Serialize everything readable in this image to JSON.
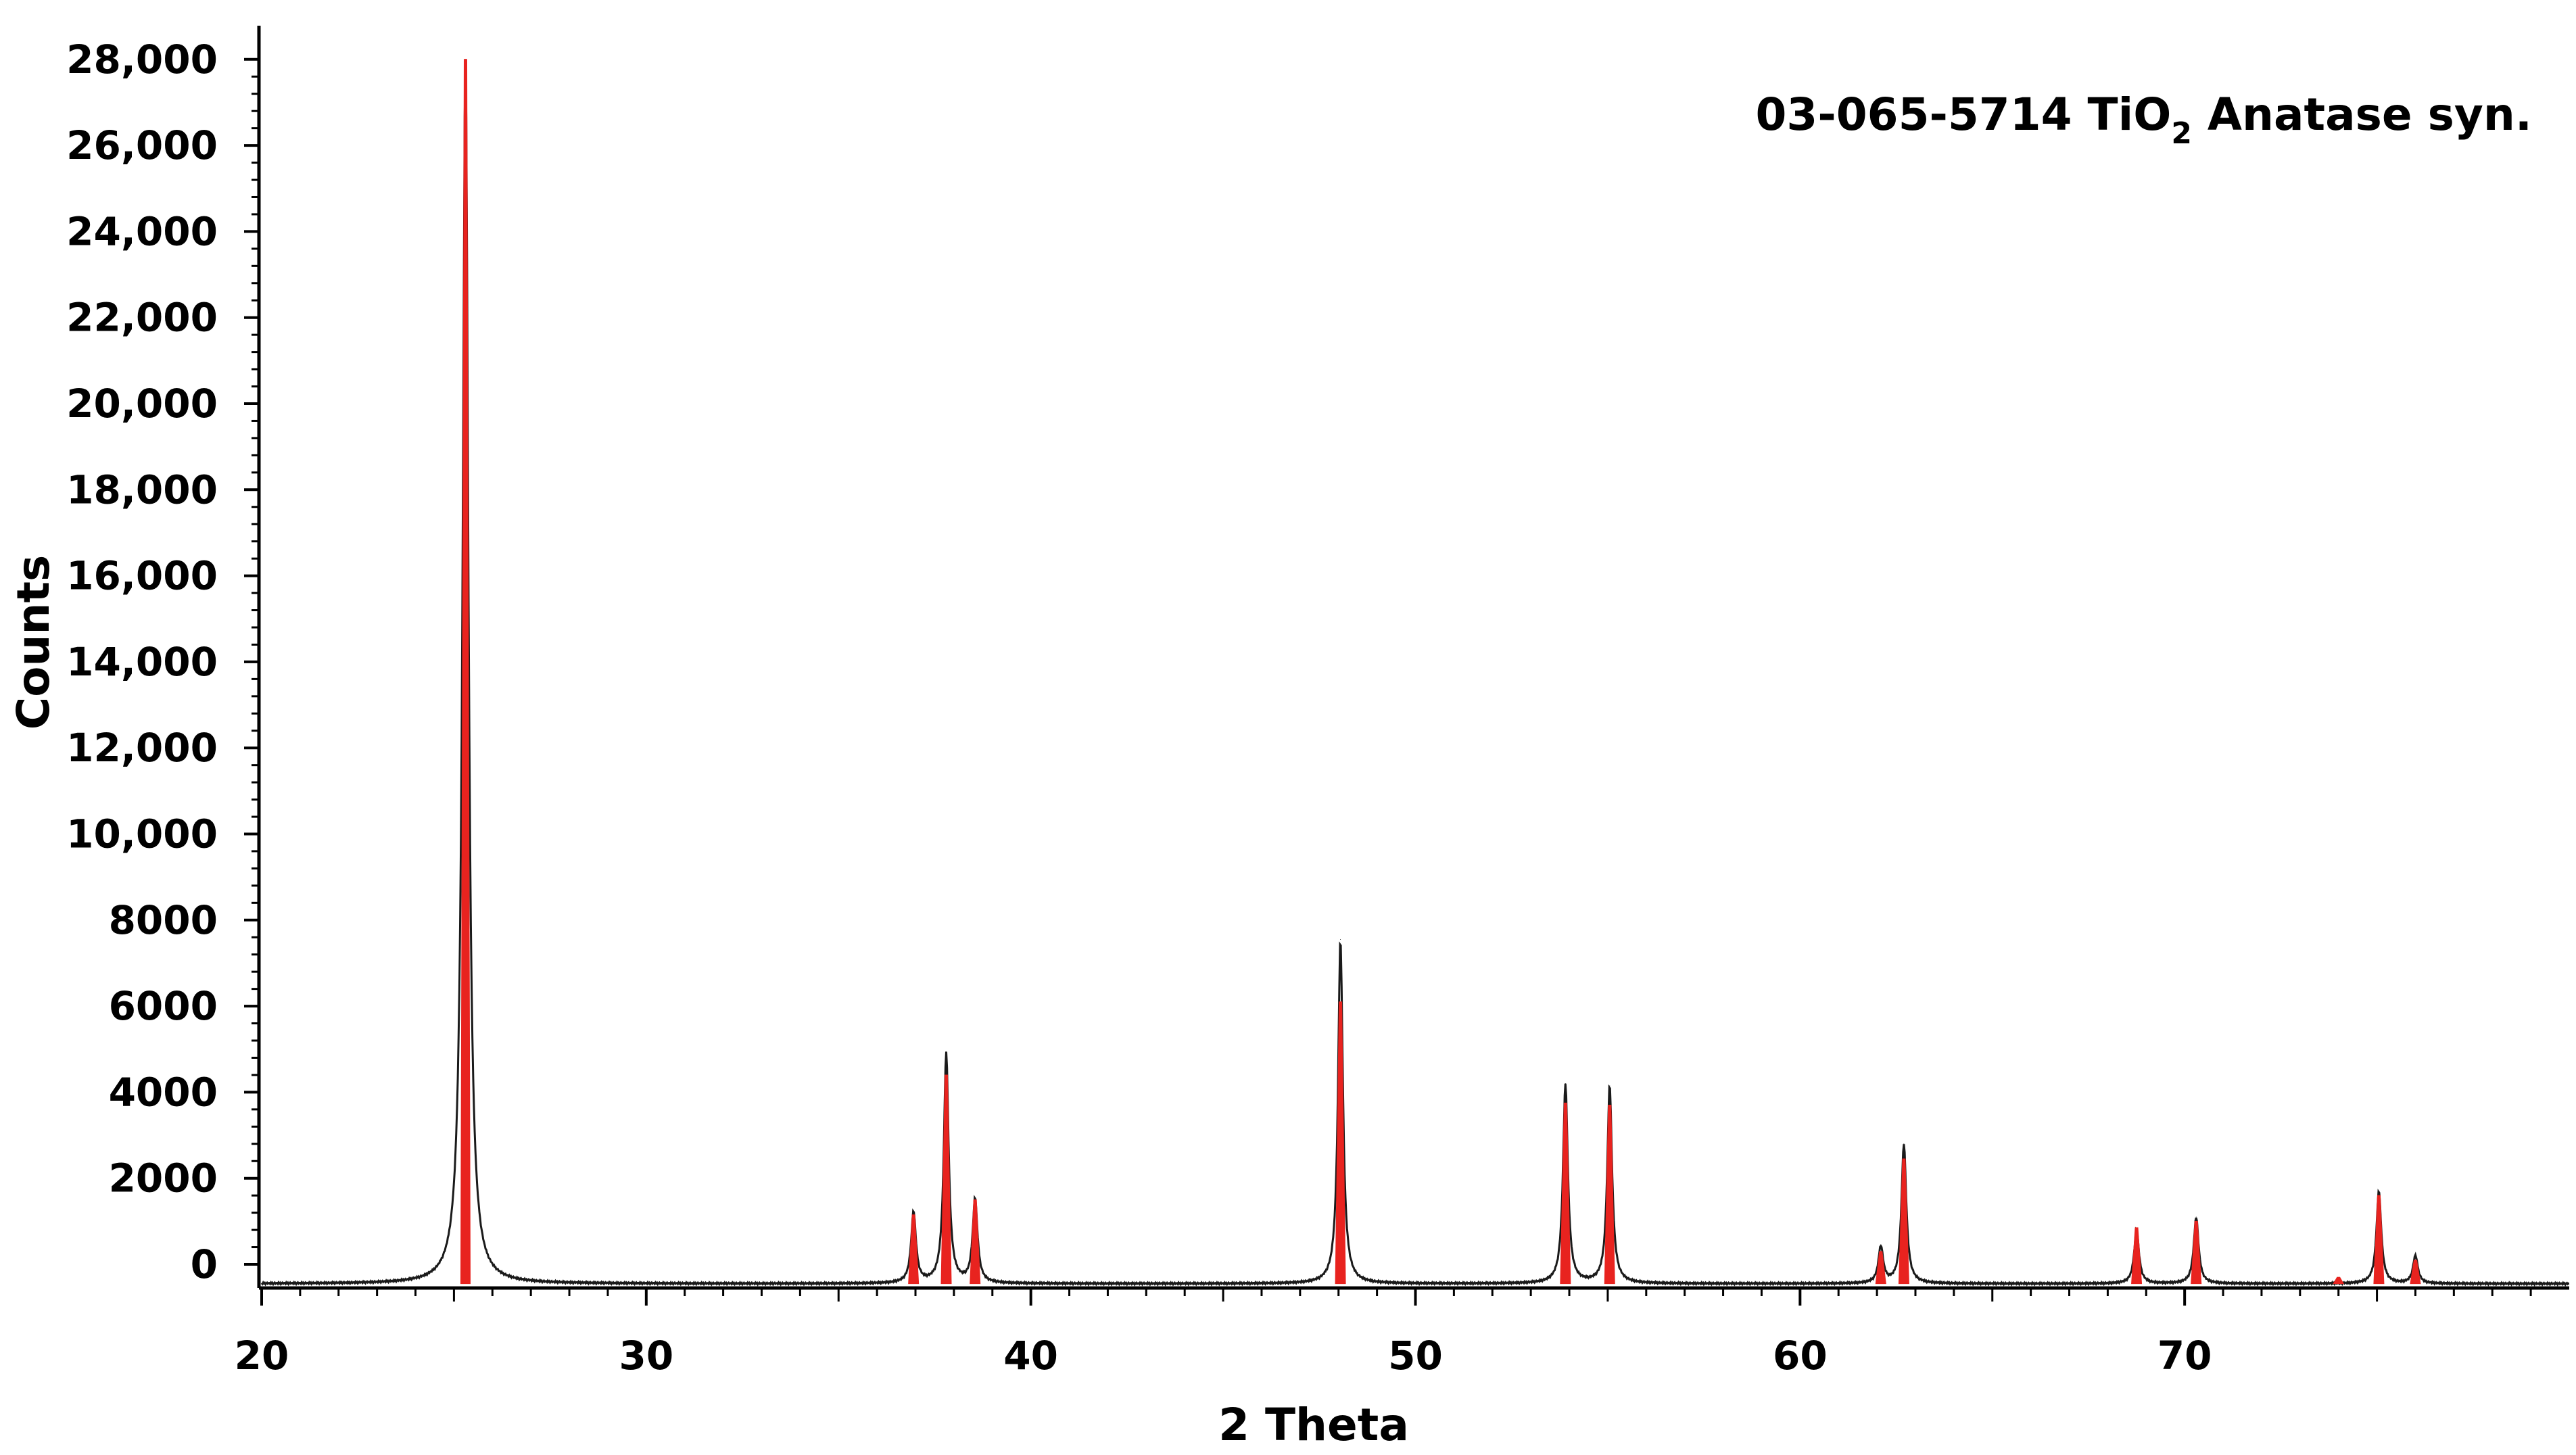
{
  "chart_data": {
    "type": "line",
    "xlabel": "2 Theta",
    "ylabel": "Counts",
    "xlim": [
      20,
      80
    ],
    "ylim": [
      -500,
      29000
    ],
    "x_ticks": [
      20,
      30,
      40,
      50,
      60,
      70
    ],
    "y_ticks": [
      0,
      2000,
      4000,
      6000,
      8000,
      10000,
      12000,
      14000,
      16000,
      18000,
      20000,
      22000,
      24000,
      26000,
      28000
    ],
    "y_tick_labels": [
      "0",
      "2000",
      "4000",
      "6000",
      "8000",
      "10,000",
      "12,000",
      "14,000",
      "16,000",
      "18,000",
      "20,000",
      "22,000",
      "24,000",
      "26,000",
      "28,000"
    ],
    "grid": false,
    "legend": {
      "position": "top-right",
      "label_prefix": "03-065-5714 TiO",
      "label_subscript": "2",
      "label_suffix": " Anatase syn."
    },
    "series": [
      {
        "role": "measured pattern",
        "color": "#1a1a1a",
        "baseline": -450,
        "peaks": [
          {
            "x": 25.3,
            "y": 28000
          },
          {
            "x": 36.95,
            "y": 1200
          },
          {
            "x": 37.8,
            "y": 4900
          },
          {
            "x": 38.55,
            "y": 1500
          },
          {
            "x": 48.05,
            "y": 7550
          },
          {
            "x": 53.9,
            "y": 4200
          },
          {
            "x": 55.05,
            "y": 4150
          },
          {
            "x": 62.1,
            "y": 400
          },
          {
            "x": 62.7,
            "y": 2800
          },
          {
            "x": 68.75,
            "y": 800
          },
          {
            "x": 70.3,
            "y": 1100
          },
          {
            "x": 75.05,
            "y": 1700
          },
          {
            "x": 76.0,
            "y": 200
          }
        ]
      },
      {
        "role": "reference card",
        "color": "#e8231f",
        "peaks": [
          {
            "x": 25.3,
            "y": 28000
          },
          {
            "x": 36.95,
            "y": 1150
          },
          {
            "x": 37.8,
            "y": 4400
          },
          {
            "x": 38.55,
            "y": 1500
          },
          {
            "x": 48.05,
            "y": 6100
          },
          {
            "x": 53.9,
            "y": 3750
          },
          {
            "x": 55.05,
            "y": 3700
          },
          {
            "x": 62.1,
            "y": 300
          },
          {
            "x": 62.7,
            "y": 2450
          },
          {
            "x": 68.75,
            "y": 850
          },
          {
            "x": 70.3,
            "y": 1000
          },
          {
            "x": 74.0,
            "y": -300
          },
          {
            "x": 75.05,
            "y": 1600
          },
          {
            "x": 76.0,
            "y": 100
          }
        ]
      }
    ]
  }
}
